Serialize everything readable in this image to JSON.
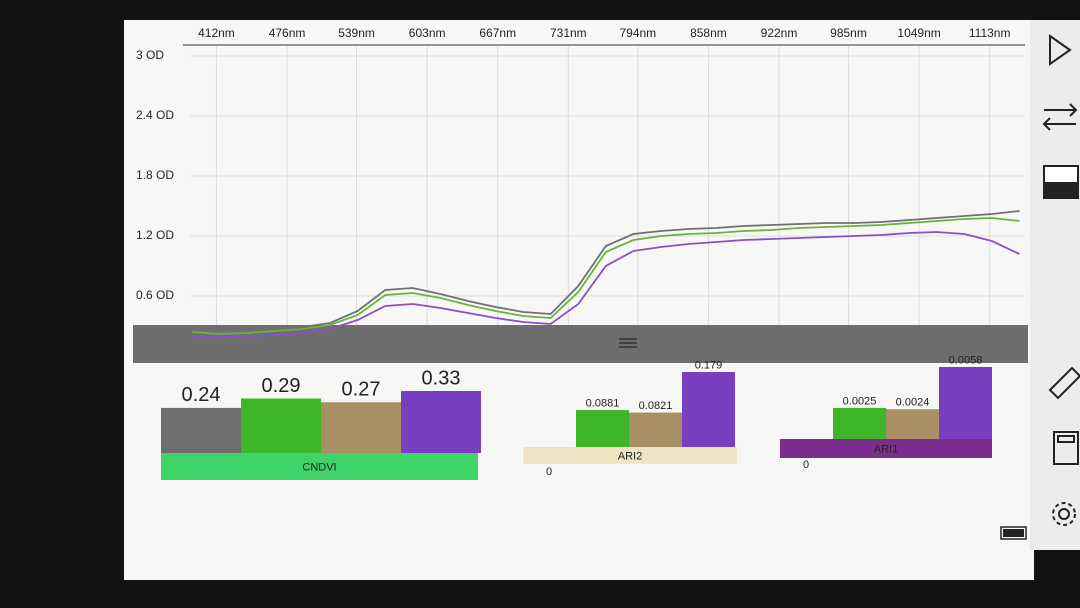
{
  "chart_data": [
    {
      "type": "line",
      "x": [
        390,
        415,
        440,
        465,
        490,
        515,
        540,
        565,
        590,
        615,
        640,
        665,
        690,
        715,
        740,
        765,
        790,
        815,
        840,
        865,
        890,
        915,
        940,
        965,
        990,
        1015,
        1040,
        1065,
        1090,
        1115,
        1140
      ],
      "series": [
        {
          "color": "#707070",
          "values": [
            0.26,
            0.24,
            0.25,
            0.27,
            0.29,
            0.33,
            0.45,
            0.66,
            0.68,
            0.62,
            0.55,
            0.49,
            0.44,
            0.42,
            0.7,
            1.1,
            1.22,
            1.25,
            1.27,
            1.28,
            1.3,
            1.31,
            1.32,
            1.33,
            1.33,
            1.34,
            1.36,
            1.38,
            1.4,
            1.42,
            1.45
          ]
        },
        {
          "color": "#6cb33b",
          "values": [
            0.24,
            0.22,
            0.23,
            0.25,
            0.27,
            0.31,
            0.41,
            0.61,
            0.63,
            0.58,
            0.51,
            0.45,
            0.4,
            0.38,
            0.64,
            1.04,
            1.16,
            1.2,
            1.22,
            1.23,
            1.25,
            1.26,
            1.28,
            1.29,
            1.3,
            1.31,
            1.33,
            1.35,
            1.37,
            1.38,
            1.35
          ]
        },
        {
          "color": "#8a4fc9",
          "values": [
            0.2,
            0.19,
            0.2,
            0.21,
            0.23,
            0.27,
            0.36,
            0.5,
            0.52,
            0.48,
            0.43,
            0.38,
            0.34,
            0.32,
            0.52,
            0.9,
            1.05,
            1.09,
            1.12,
            1.14,
            1.16,
            1.17,
            1.18,
            1.19,
            1.2,
            1.21,
            1.23,
            1.24,
            1.22,
            1.15,
            1.02
          ]
        }
      ],
      "xlim": [
        388,
        1145
      ],
      "xticks": [
        {
          "value": 412,
          "label": "412nm"
        },
        {
          "value": 476,
          "label": "476nm"
        },
        {
          "value": 539,
          "label": "539nm"
        },
        {
          "value": 603,
          "label": "603nm"
        },
        {
          "value": 667,
          "label": "667nm"
        },
        {
          "value": 731,
          "label": "731nm"
        },
        {
          "value": 794,
          "label": "794nm"
        },
        {
          "value": 858,
          "label": "858nm"
        },
        {
          "value": 922,
          "label": "922nm"
        },
        {
          "value": 985,
          "label": "985nm"
        },
        {
          "value": 1049,
          "label": "1049nm"
        },
        {
          "value": 1113,
          "label": "1113nm"
        }
      ],
      "ylim": [
        0.16,
        3.1
      ],
      "yticks": [
        {
          "value": 0.6,
          "label": "0.6 OD"
        },
        {
          "value": 1.2,
          "label": "1.2 OD"
        },
        {
          "value": 1.8,
          "label": "1.8 OD"
        },
        {
          "value": 2.4,
          "label": "2.4 OD"
        },
        {
          "value": 3,
          "label": "3 OD"
        }
      ],
      "grid": true
    },
    {
      "type": "bar",
      "title": "CNDVI",
      "values": [
        0.24,
        0.29,
        0.27,
        0.33
      ],
      "colors": [
        "#6e6e6e",
        "#3fb52a",
        "#a89064",
        "#7a3fc0"
      ],
      "band_color": "#3fd36a"
    },
    {
      "type": "bar",
      "title": "ARI2",
      "values": [
        0.0881,
        0.0821,
        0.179
      ],
      "colors": [
        "#3fb52a",
        "#a89064",
        "#7a3fc0"
      ],
      "band_color": "#efe5c4",
      "yticks": [
        0
      ]
    },
    {
      "type": "bar",
      "title": "ARI1",
      "values": [
        0.0025,
        0.0024,
        0.0058
      ],
      "colors": [
        "#3fb52a",
        "#a89064",
        "#7a3fc0"
      ],
      "band_color": "#7b2d8e",
      "yticks": [
        0
      ]
    }
  ]
}
